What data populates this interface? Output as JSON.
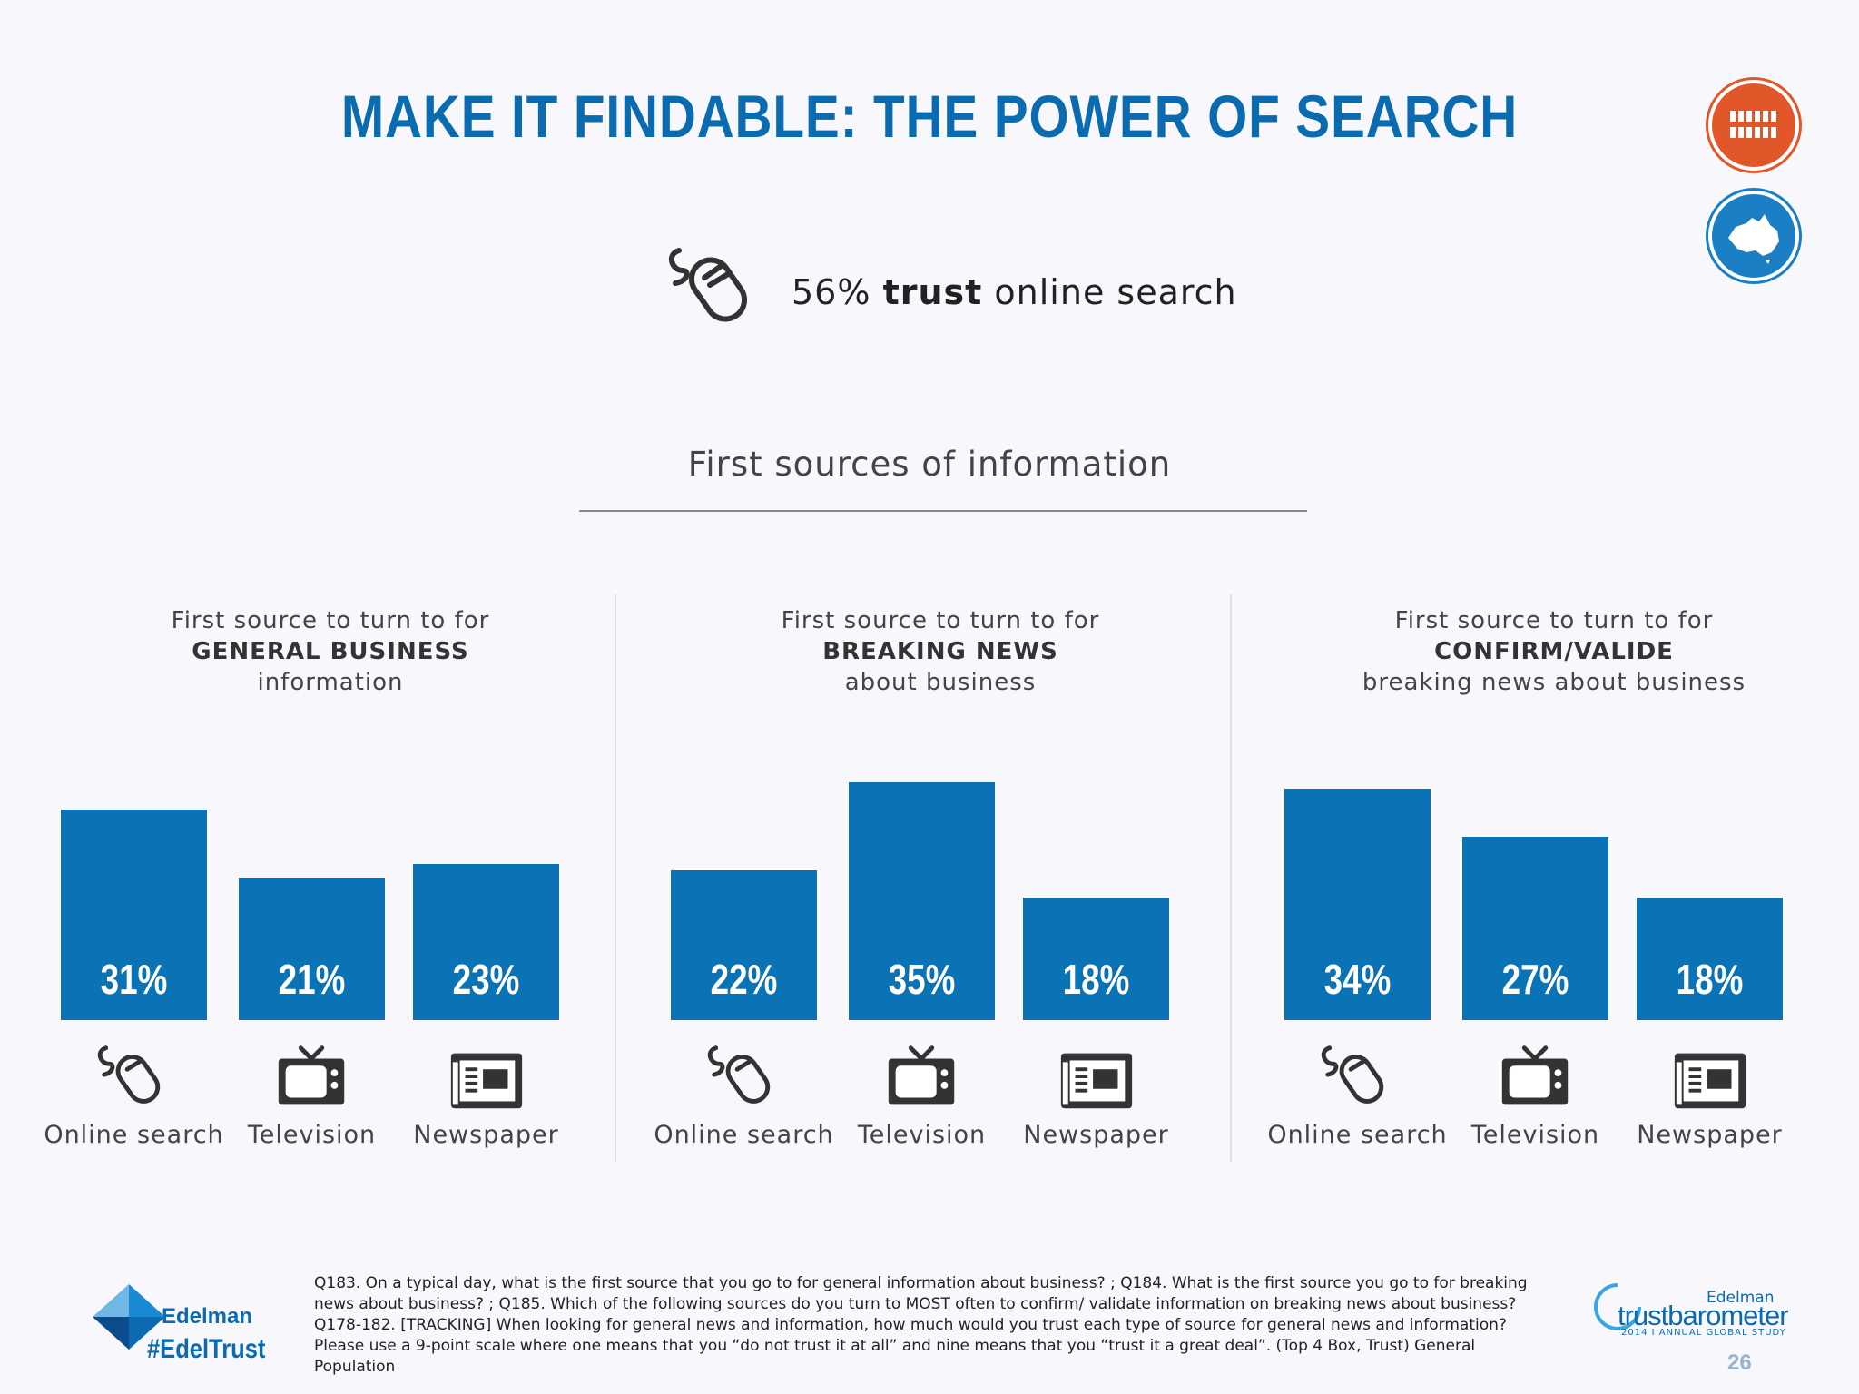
{
  "title": "MAKE IT FINDABLE: THE POWER OF SEARCH",
  "headline": {
    "value": "56%",
    "strong": "trust",
    "rest": "online search"
  },
  "section_title": "First sources of information",
  "badges": [
    "people-icon",
    "australia-map-icon"
  ],
  "colors": {
    "bar": "#0a73b5",
    "title": "#0a6bb0",
    "badge_people": "#e2572a",
    "badge_map": "#1a7fc4"
  },
  "chart_data": [
    {
      "type": "bar",
      "heading": {
        "line1": "First source to turn to for",
        "line2": "GENERAL BUSINESS",
        "line3": "information"
      },
      "categories": [
        "Online search",
        "Television",
        "Newspaper"
      ],
      "icons": [
        "mouse-icon",
        "television-icon",
        "newspaper-icon"
      ],
      "values": [
        31,
        21,
        23
      ],
      "labels": [
        "31%",
        "21%",
        "23%"
      ],
      "ylim": [
        0,
        40
      ]
    },
    {
      "type": "bar",
      "heading": {
        "line1": "First source to turn to for",
        "line2": "BREAKING NEWS",
        "line3": "about business"
      },
      "categories": [
        "Online search",
        "Television",
        "Newspaper"
      ],
      "icons": [
        "mouse-icon",
        "television-icon",
        "newspaper-icon"
      ],
      "values": [
        22,
        35,
        18
      ],
      "labels": [
        "22%",
        "35%",
        "18%"
      ],
      "ylim": [
        0,
        40
      ]
    },
    {
      "type": "bar",
      "heading": {
        "line1": "First source to turn to for",
        "line2": "CONFIRM/VALIDE",
        "line3": "breaking news about business"
      },
      "categories": [
        "Online search",
        "Television",
        "Newspaper"
      ],
      "icons": [
        "mouse-icon",
        "television-icon",
        "newspaper-icon"
      ],
      "values": [
        34,
        27,
        18
      ],
      "labels": [
        "34%",
        "27%",
        "18%"
      ],
      "ylim": [
        0,
        40
      ]
    }
  ],
  "footnote": "Q183. On a typical day, what is the first source that you go to for general information about business? ; Q184. What is the first source you go to for breaking news about business?  ; Q185. Which of the following sources do you turn to MOST often to confirm/ validate information on breaking news about business? Q178-182. [TRACKING] When looking for general news and information, how much would you trust each type of source for general news and information? Please use a 9-point scale where one means that you “do not trust it at all” and nine means that you “trust it a great deal”. (Top 4 Box, Trust) General Population",
  "branding": {
    "edelman": "Edelman",
    "hashtag": "#EdelTrust",
    "tb_brand": "Edelman",
    "tb_name": "trustbarometer",
    "tb_study": "2014 I ANNUAL GLOBAL STUDY",
    "page_number": "26"
  }
}
